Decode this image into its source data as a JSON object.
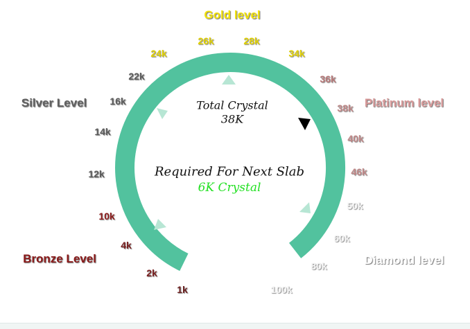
{
  "levels": {
    "gold": {
      "label": "Gold level",
      "color": "#f2e20a"
    },
    "silver": {
      "label": "Silver Level",
      "color": "#606060"
    },
    "platinum": {
      "label": "Platinum level",
      "color": "#d89a9a"
    },
    "bronze": {
      "label": "Bronze Level",
      "color": "#8b1a1a"
    },
    "diamond": {
      "label": "Diamond level",
      "color": "#ffffff"
    }
  },
  "ticks": [
    {
      "label": "1k",
      "color": "#6b2020"
    },
    {
      "label": "2k",
      "color": "#7a2020"
    },
    {
      "label": "4k",
      "color": "#7a2020"
    },
    {
      "label": "10k",
      "color": "#8b1a1a"
    },
    {
      "label": "12k",
      "color": "#5a5a5a"
    },
    {
      "label": "14k",
      "color": "#5a5a5a"
    },
    {
      "label": "16k",
      "color": "#5a5a5a"
    },
    {
      "label": "22k",
      "color": "#5a5a5a"
    },
    {
      "label": "24k",
      "color": "#e0d000"
    },
    {
      "label": "26k",
      "color": "#e0d000"
    },
    {
      "label": "28k",
      "color": "#e0d000"
    },
    {
      "label": "34k",
      "color": "#e0d000"
    },
    {
      "label": "36k",
      "color": "#b87878"
    },
    {
      "label": "38k",
      "color": "#c08888"
    },
    {
      "label": "40k",
      "color": "#c08888"
    },
    {
      "label": "46k",
      "color": "#c08888"
    },
    {
      "label": "50k",
      "color": "#f4f4f4"
    },
    {
      "label": "60k",
      "color": "#f4f4f4"
    },
    {
      "label": "80k",
      "color": "#f4f4f4"
    },
    {
      "label": "100k",
      "color": "#f4f4f4"
    }
  ],
  "center": {
    "total_label": "Total Crystal",
    "total_value": "38K",
    "required_label": "Required For Next Slab",
    "required_value": "6K Crystal",
    "required_value_color": "#22e022"
  },
  "ring": {
    "color": "#52c29e",
    "arrow_color": "#b7e6d4",
    "pointer_color": "#000000"
  }
}
